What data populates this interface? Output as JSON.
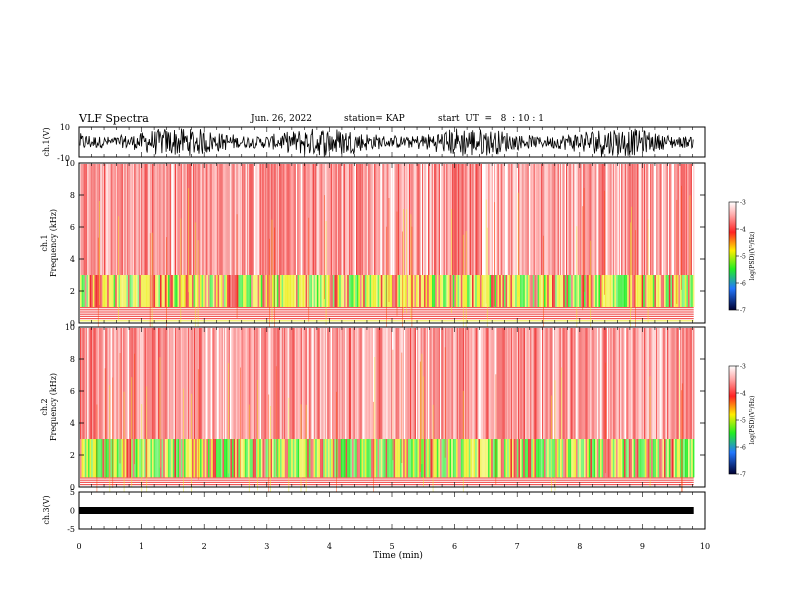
{
  "header": {
    "title": "VLF Spectra",
    "date": "Jun. 26, 2022",
    "station": "station= KAP",
    "start": "start  UT  =   8  : 10 : 1"
  },
  "chart_data": [
    {
      "type": "line",
      "panel": "ch1-waveform",
      "ylabel": "ch.1(V)",
      "ylim": [
        -10,
        10
      ],
      "yticks": [
        "10",
        "-10"
      ],
      "xlim": [
        0,
        10
      ],
      "series_color": "#000000",
      "data_extent_x": 9.82
    },
    {
      "type": "heatmap",
      "panel": "ch1-spectrogram",
      "ylabel_line1": "ch.1",
      "ylabel_line2": "Frequency  (kHz)",
      "ylim": [
        0,
        10
      ],
      "yticks": [
        "0",
        "2",
        "4",
        "6",
        "8",
        "10"
      ],
      "xlim": [
        0,
        10
      ],
      "data_extent_x": 9.82,
      "dominant_color": "#ee2222",
      "band": {
        "x_range": [
          1.0,
          3.0
        ],
        "note": "yellow/green band"
      },
      "colorbar": {
        "label": "log(PSD)(V²/Hz)",
        "range": [
          -7,
          -3
        ],
        "ticks": [
          "-3",
          "-4",
          "-5",
          "-6",
          "-7"
        ]
      }
    },
    {
      "type": "heatmap",
      "panel": "ch2-spectrogram",
      "ylabel_line1": "ch.2",
      "ylabel_line2": "Frequency  (kHz)",
      "ylim": [
        0,
        10
      ],
      "yticks": [
        "0",
        "2",
        "4",
        "6",
        "8",
        "10"
      ],
      "xlim": [
        0,
        10
      ],
      "data_extent_x": 9.82,
      "dominant_color": "#ee2222",
      "band": {
        "x_range": [
          0.6,
          3.0
        ],
        "note": "green band"
      },
      "colorbar": {
        "label": "log(PSD)(V²/Hz)",
        "range": [
          -7,
          -3
        ],
        "ticks": [
          "-3",
          "-4",
          "-5",
          "-6",
          "-7"
        ]
      }
    },
    {
      "type": "line",
      "panel": "ch3-waveform",
      "ylabel": "ch.3(V)",
      "ylim": [
        -5,
        5
      ],
      "yticks": [
        "5",
        "0",
        "-5"
      ],
      "xlim": [
        0,
        10
      ],
      "level": 0,
      "series_color": "#000000",
      "data_extent_x": 9.82
    }
  ],
  "xaxis": {
    "label": "Time  (min)",
    "ticks": [
      "0",
      "1",
      "2",
      "3",
      "4",
      "5",
      "6",
      "7",
      "8",
      "9",
      "10"
    ]
  },
  "colors": {
    "spectrogram_base": "#ffffff",
    "spectrogram_red": "#ee2222",
    "spectrogram_yellow": "#eeee22",
    "spectrogram_green": "#22ee22"
  }
}
